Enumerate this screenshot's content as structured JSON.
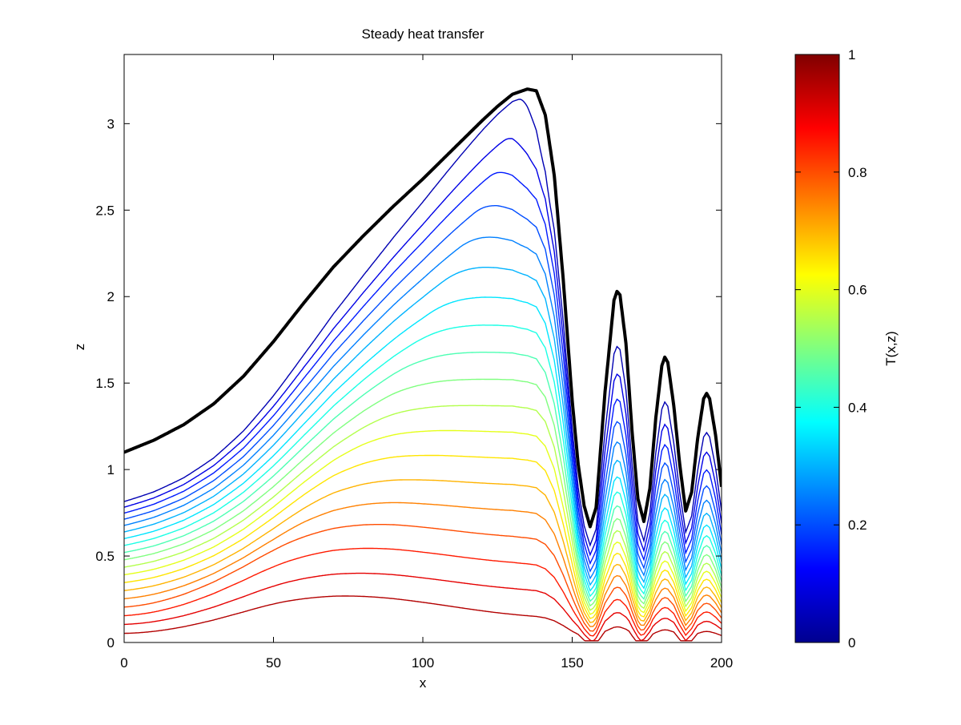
{
  "chart_data": {
    "type": "contour",
    "title": "Steady heat transfer",
    "xlabel": "x",
    "ylabel": "z",
    "xlim": [
      0,
      200
    ],
    "ylim": [
      0,
      3.4
    ],
    "xticks": [
      0,
      50,
      100,
      150,
      200
    ],
    "yticks": [
      0,
      0.5,
      1,
      1.5,
      2,
      2.5,
      3
    ],
    "grid": false,
    "colormap": "jet",
    "colorbar": {
      "label": "T(x,z)",
      "range": [
        0,
        1
      ],
      "ticks": [
        0,
        0.2,
        0.4,
        0.6,
        0.8,
        1
      ],
      "placement": "right"
    },
    "boundary": {
      "name": "surface",
      "color": "#000000",
      "x": [
        0,
        10,
        20,
        30,
        40,
        50,
        60,
        70,
        80,
        90,
        100,
        110,
        120,
        125,
        130,
        135,
        138,
        141,
        144,
        147,
        150,
        152,
        154,
        156,
        158,
        161,
        164,
        165,
        166,
        168,
        170,
        172,
        174,
        176,
        178,
        180,
        181,
        182,
        184,
        186,
        188,
        190,
        192,
        194,
        195,
        196,
        198,
        200
      ],
      "z": [
        1.1,
        1.17,
        1.26,
        1.38,
        1.54,
        1.74,
        1.96,
        2.17,
        2.35,
        2.52,
        2.68,
        2.85,
        3.02,
        3.1,
        3.17,
        3.2,
        3.19,
        3.05,
        2.7,
        2.1,
        1.4,
        1.03,
        0.79,
        0.67,
        0.78,
        1.45,
        1.98,
        2.03,
        2.01,
        1.73,
        1.23,
        0.83,
        0.7,
        0.89,
        1.3,
        1.6,
        1.65,
        1.62,
        1.37,
        1.03,
        0.76,
        0.87,
        1.18,
        1.41,
        1.44,
        1.41,
        1.2,
        0.9
      ]
    },
    "isotherms": {
      "levels": [
        0.05,
        0.1,
        0.15,
        0.2,
        0.25,
        0.3,
        0.35,
        0.4,
        0.45,
        0.5,
        0.55,
        0.6,
        0.65,
        0.7,
        0.75,
        0.8,
        0.85,
        0.9,
        0.95
      ],
      "x_peak": [
        132,
        127,
        122,
        117,
        112,
        107,
        102,
        97,
        92,
        87,
        82,
        77,
        72,
        67,
        62,
        57,
        55,
        55,
        55
      ],
      "z_peak": [
        3.14,
        2.9,
        2.69,
        2.48,
        2.28,
        2.09,
        1.9,
        1.73,
        1.57,
        1.41,
        1.26,
        1.12,
        0.98,
        0.84,
        0.71,
        0.59,
        0.47,
        0.35,
        0.24
      ]
    }
  }
}
